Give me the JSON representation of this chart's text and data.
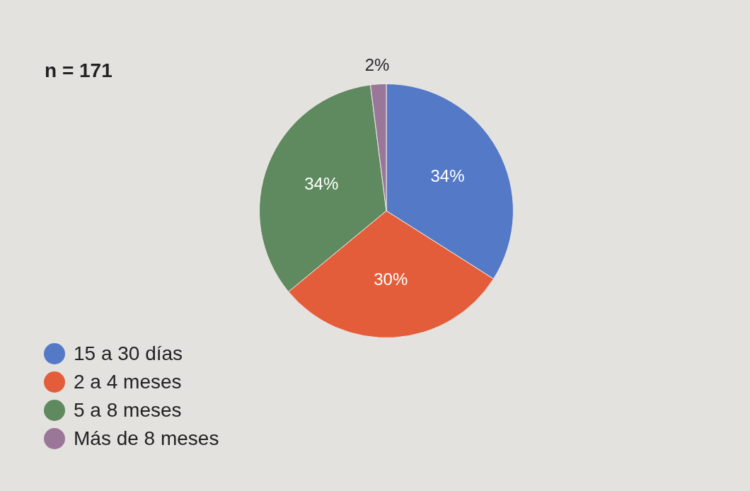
{
  "chart_data": {
    "type": "pie",
    "categories": [
      "15 a 30 días",
      "2 a 4 meses",
      "5 a 8 meses",
      "Más de 8 meses"
    ],
    "values": [
      34,
      30,
      34,
      2
    ],
    "colors": [
      "#5479c6",
      "#e45d3a",
      "#5f8a5f",
      "#9a7798"
    ],
    "value_labels": [
      "34%",
      "30%",
      "34%",
      "2%"
    ],
    "legend": "bottom left",
    "annotations": [
      "n = 171"
    ]
  }
}
